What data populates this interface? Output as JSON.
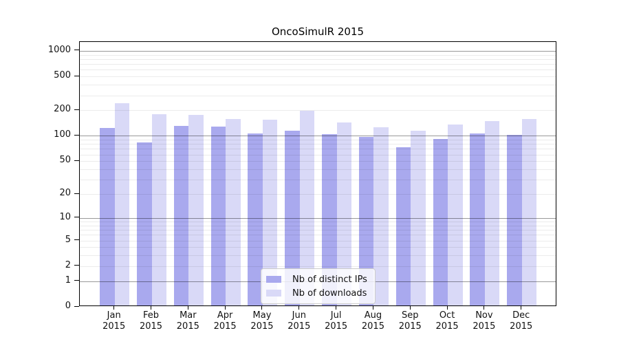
{
  "chart_data": {
    "type": "bar",
    "title": "OncoSimulR 2015",
    "categories": [
      "Jan",
      "Feb",
      "Mar",
      "Apr",
      "May",
      "Jun",
      "Jul",
      "Aug",
      "Sep",
      "Oct",
      "Nov",
      "Dec"
    ],
    "category_year": "2015",
    "series": [
      {
        "name": "Nb of distinct IPs",
        "color": "#a9a9ee",
        "values": [
          120,
          80,
          127,
          124,
          103,
          111,
          101,
          93,
          71,
          88,
          102,
          99
        ]
      },
      {
        "name": "Nb of downloads",
        "color": "#d9d9f7",
        "values": [
          235,
          172,
          170,
          151,
          149,
          191,
          138,
          122,
          110,
          131,
          143,
          151
        ]
      }
    ],
    "xlabel": "",
    "ylabel": "",
    "y_scale": "log10(value+1)",
    "y_ticks": [
      0,
      1,
      2,
      5,
      10,
      20,
      50,
      100,
      200,
      500,
      1000
    ],
    "ylim": [
      0,
      1270
    ],
    "grid": {
      "major_lines": [
        1,
        10,
        100,
        1000
      ],
      "minor_lines_per_decade": [
        2,
        3,
        4,
        5,
        6,
        7,
        8,
        9
      ],
      "grid_on": true
    },
    "legend_position": "inside-bottom-center"
  }
}
